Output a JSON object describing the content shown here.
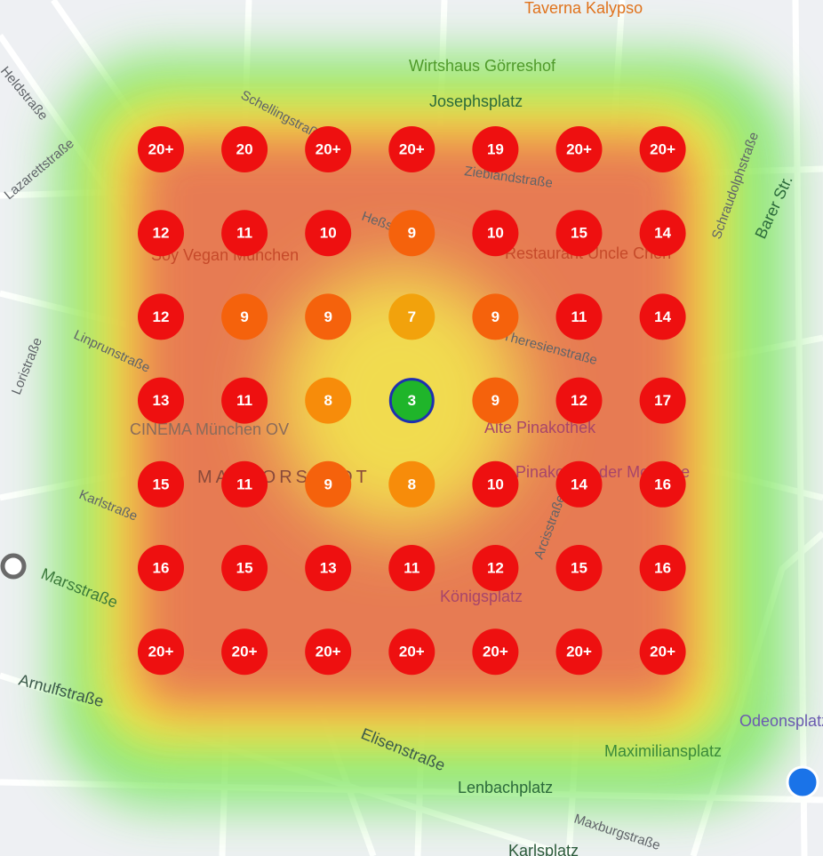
{
  "grid": {
    "rows": [
      [
        "20+",
        "20",
        "20+",
        "20+",
        "19",
        "20+",
        "20+"
      ],
      [
        "12",
        "11",
        "10",
        "9",
        "10",
        "15",
        "14"
      ],
      [
        "12",
        "9",
        "9",
        "7",
        "9",
        "11",
        "14"
      ],
      [
        "13",
        "11",
        "8",
        "3",
        "9",
        "12",
        "17"
      ],
      [
        "15",
        "11",
        "9",
        "8",
        "10",
        "14",
        "16"
      ],
      [
        "16",
        "15",
        "13",
        "11",
        "12",
        "15",
        "16"
      ],
      [
        "20+",
        "20+",
        "20+",
        "20+",
        "20+",
        "20+",
        "20+"
      ]
    ]
  },
  "places": [
    "Taverna Kalypso",
    "Wirtshaus Görreshof",
    "Josephsplatz",
    "Soy Vegan München",
    "Restaurant Uncle Chen",
    "CINEMA München OV",
    "Alte Pinakothek",
    "Pinakothek der Moderne",
    "Königsplatz",
    "Lenbachplatz",
    "Maximiliansplatz",
    "Odeonsplatz",
    "Karlsplatz",
    "MAXVORSTADT"
  ],
  "streets": [
    "Heldstraße",
    "Lazarettstraße",
    "Schellingstraße",
    "Zieblandstraße",
    "Theresienstraße",
    "Linprunstraße",
    "Loristraße",
    "Karlstraße",
    "Marsstraße",
    "Arnulfstraße",
    "Elisenstraße",
    "Maxburgstraße",
    "Barer Str.",
    "Schraudolphstraße",
    "Arcisstraße",
    "Heßstraße"
  ]
}
